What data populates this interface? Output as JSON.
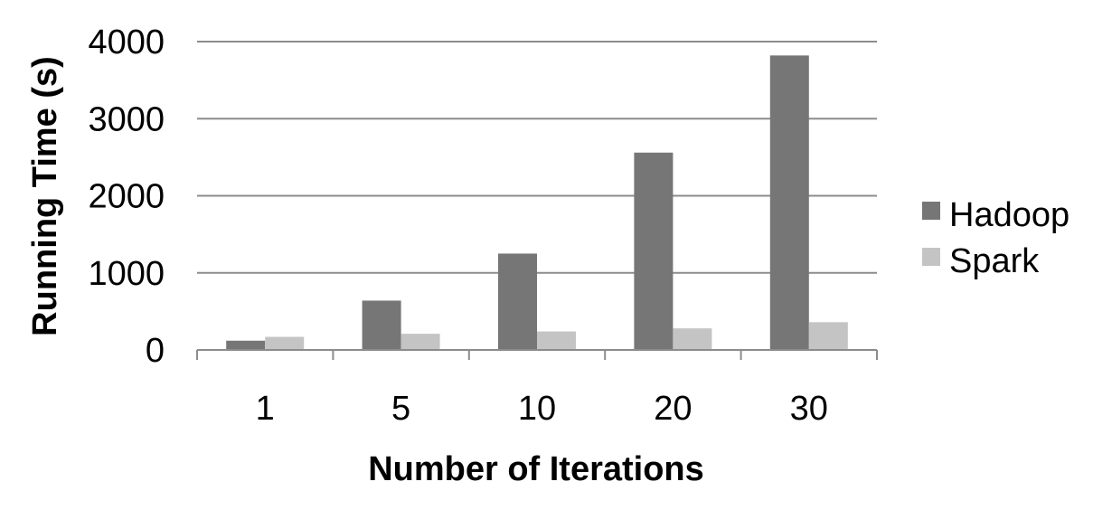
{
  "chart_data": {
    "type": "bar",
    "title": "",
    "xlabel": "Number of Iterations",
    "ylabel": "Running Time (s)",
    "categories": [
      "1",
      "5",
      "10",
      "20",
      "30"
    ],
    "series": [
      {
        "name": "Hadoop",
        "values": [
          120,
          640,
          1250,
          2560,
          3820
        ],
        "color": "#767676"
      },
      {
        "name": "Spark",
        "values": [
          170,
          210,
          240,
          280,
          360
        ],
        "color": "#c4c4c4"
      }
    ],
    "ylim": [
      0,
      4000
    ],
    "yticks": [
      "0",
      "1000",
      "2000",
      "3000",
      "4000"
    ],
    "grid": true,
    "legend_position": "right"
  }
}
